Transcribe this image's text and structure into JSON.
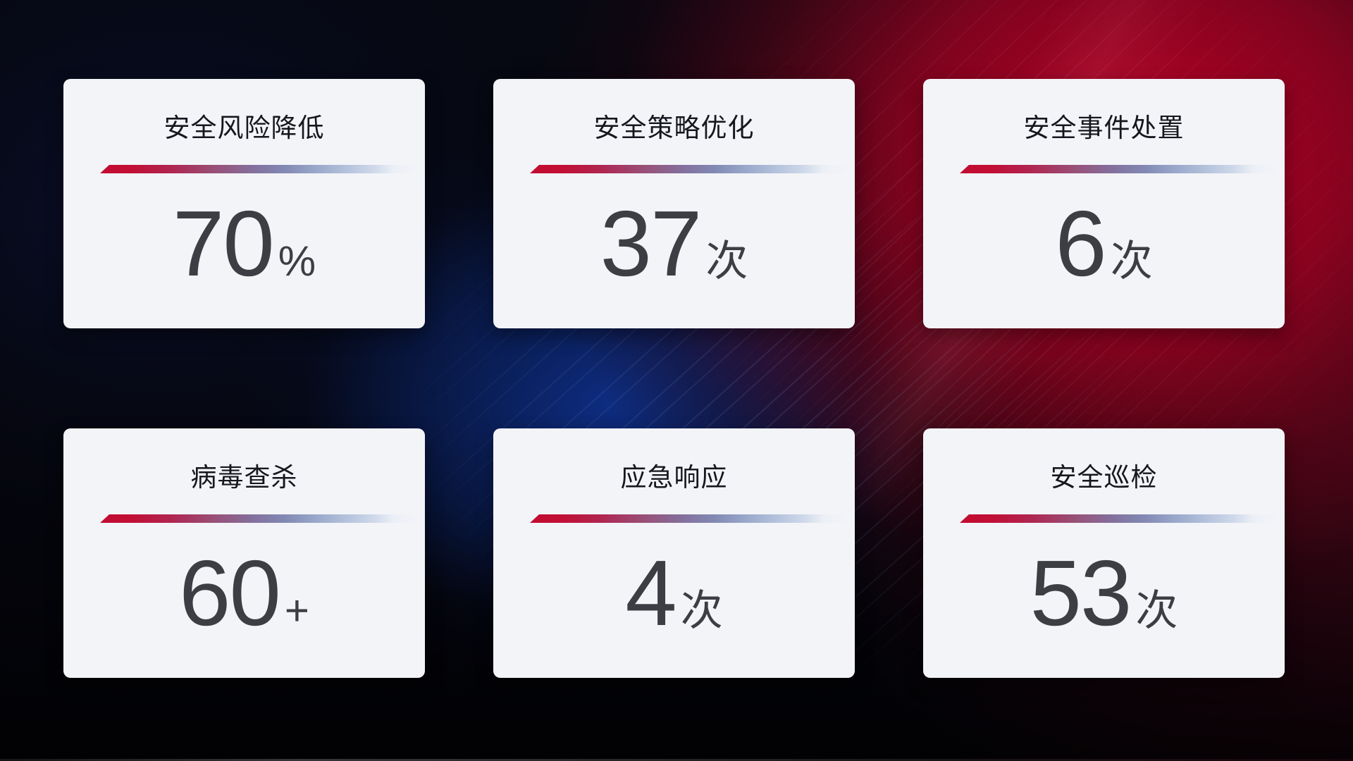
{
  "colors": {
    "card_background": "#f3f4f8",
    "title_text": "#15171e",
    "value_text": "#3c3e44",
    "divider_red": "#c30b31",
    "divider_blue": "#b6c4dd",
    "background_red_glow": "#c10026",
    "background_blue_glow": "#10379f",
    "background_base": "#04050a"
  },
  "cards": [
    {
      "title": "安全风险降低",
      "value": "70",
      "unit": "%"
    },
    {
      "title": "安全策略优化",
      "value": "37",
      "unit": "次"
    },
    {
      "title": "安全事件处置",
      "value": "6",
      "unit": "次"
    },
    {
      "title": "病毒查杀",
      "value": "60",
      "unit": "+"
    },
    {
      "title": "应急响应",
      "value": "4",
      "unit": "次"
    },
    {
      "title": "安全巡检",
      "value": "53",
      "unit": "次"
    }
  ]
}
